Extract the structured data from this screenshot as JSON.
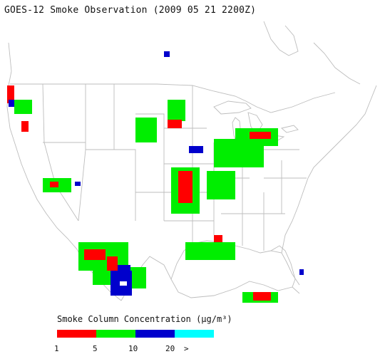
{
  "title": "GOES-12 Smoke Observation (2009 05 21  2200Z)",
  "legend": {
    "title": "Smoke Column Concentration (μg/m³)",
    "colors": [
      "#ff0000",
      "#00ee00",
      "#0000cc",
      "#00ffff"
    ],
    "ticks": [
      "1",
      "5",
      "10",
      "20",
      ">"
    ]
  },
  "palette": {
    "boundary": "#bdbdbd",
    "water": "#ffffff",
    "land": "#ffffff"
  }
}
